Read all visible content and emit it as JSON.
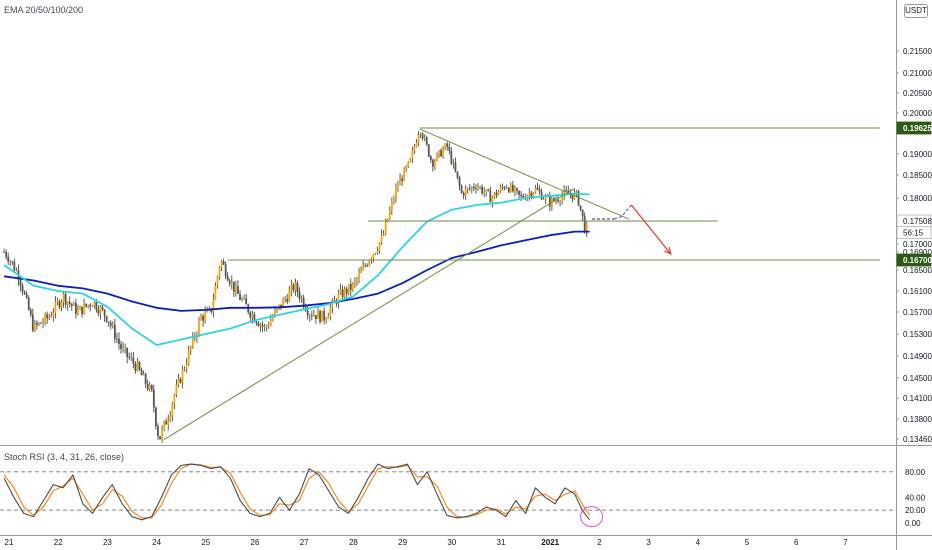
{
  "indicators": {
    "ema_label": "EMA 20/50/100/200",
    "rsi_label": "Stoch RSI (3, 4, 31, 26, close)"
  },
  "currency": "USDT",
  "colors": {
    "up": "#26a69a",
    "down": "#ef5350",
    "body_up": "#f7a600",
    "body_down": "#555555",
    "ema_fast": "#2ed3e0",
    "ema_slow": "#0b1fb5",
    "trendline": "#6b8f3a",
    "arrow": "#e53935",
    "rsi_k": "#4a4a4a",
    "rsi_d": "#f08c20",
    "highlight_circle": "#d86ad8",
    "price_tag_dark": "#2e5b13"
  },
  "chart_data": [
    {
      "type": "candlestick",
      "title": "",
      "x_ticks": [
        "21",
        "22",
        "23",
        "24",
        "25",
        "26",
        "27",
        "28",
        "29",
        "30",
        "31",
        "2021",
        "2",
        "3",
        "4",
        "5",
        "6",
        "7"
      ],
      "y_ticks": [
        "0.21500",
        "0.21000",
        "0.20500",
        "0.20000",
        "0.19000",
        "0.18500",
        "0.18000",
        "0.17000",
        "0.16900",
        "0.16500",
        "0.16100",
        "0.15700",
        "0.15300",
        "0.14900",
        "0.14500",
        "0.14100",
        "0.13800",
        "0.13460"
      ],
      "ylim": [
        0.1335,
        0.22
      ],
      "price_tags": [
        {
          "label": "0.19625",
          "value": 0.19625,
          "style": "dark"
        },
        {
          "label": "0.17508",
          "value": 0.17508,
          "style": "light"
        },
        {
          "label": "56:15",
          "value": 0.1728,
          "style": "light"
        },
        {
          "label": "0.16700",
          "value": 0.167,
          "style": "dark"
        }
      ],
      "price_path": [
        [
          20.9,
          0.169
        ],
        [
          21.2,
          0.164
        ],
        [
          21.5,
          0.154
        ],
        [
          21.8,
          0.156
        ],
        [
          22.1,
          0.16
        ],
        [
          22.4,
          0.157
        ],
        [
          22.7,
          0.159
        ],
        [
          23.0,
          0.156
        ],
        [
          23.3,
          0.15
        ],
        [
          23.6,
          0.147
        ],
        [
          23.9,
          0.142
        ],
        [
          24.05,
          0.1345
        ],
        [
          24.3,
          0.14
        ],
        [
          24.6,
          0.148
        ],
        [
          24.9,
          0.156
        ],
        [
          25.1,
          0.157
        ],
        [
          25.3,
          0.167
        ],
        [
          25.6,
          0.161
        ],
        [
          25.9,
          0.157
        ],
        [
          26.2,
          0.154
        ],
        [
          26.5,
          0.158
        ],
        [
          26.8,
          0.162
        ],
        [
          27.1,
          0.157
        ],
        [
          27.4,
          0.156
        ],
        [
          27.7,
          0.16
        ],
        [
          28.0,
          0.162
        ],
        [
          28.3,
          0.167
        ],
        [
          28.6,
          0.172
        ],
        [
          28.9,
          0.183
        ],
        [
          29.15,
          0.188
        ],
        [
          29.35,
          0.1965
        ],
        [
          29.6,
          0.188
        ],
        [
          29.9,
          0.192
        ],
        [
          30.2,
          0.181
        ],
        [
          30.5,
          0.183
        ],
        [
          30.8,
          0.18
        ],
        [
          31.1,
          0.183
        ],
        [
          31.4,
          0.18
        ],
        [
          31.7,
          0.182
        ],
        [
          32.0,
          0.179
        ],
        [
          32.3,
          0.181
        ],
        [
          32.55,
          0.1805
        ],
        [
          32.72,
          0.173
        ],
        [
          32.8,
          0.175
        ]
      ],
      "ema_fast": [
        [
          20.9,
          0.166
        ],
        [
          21.5,
          0.162
        ],
        [
          22.0,
          0.161
        ],
        [
          22.5,
          0.1605
        ],
        [
          23.0,
          0.158
        ],
        [
          23.5,
          0.154
        ],
        [
          24.0,
          0.151
        ],
        [
          24.5,
          0.152
        ],
        [
          25.0,
          0.153
        ],
        [
          25.5,
          0.154
        ],
        [
          26.0,
          0.1555
        ],
        [
          26.5,
          0.1565
        ],
        [
          27.0,
          0.1575
        ],
        [
          27.5,
          0.1585
        ],
        [
          28.0,
          0.16
        ],
        [
          28.5,
          0.164
        ],
        [
          29.0,
          0.17
        ],
        [
          29.5,
          0.175
        ],
        [
          30.0,
          0.1775
        ],
        [
          30.5,
          0.1785
        ],
        [
          31.0,
          0.179
        ],
        [
          31.5,
          0.18
        ],
        [
          32.0,
          0.1805
        ],
        [
          32.5,
          0.181
        ],
        [
          32.8,
          0.1808
        ]
      ],
      "ema_slow": [
        [
          20.9,
          0.1638
        ],
        [
          21.5,
          0.163
        ],
        [
          22.0,
          0.162
        ],
        [
          22.5,
          0.1615
        ],
        [
          23.0,
          0.1605
        ],
        [
          23.5,
          0.159
        ],
        [
          24.0,
          0.1578
        ],
        [
          24.5,
          0.1572
        ],
        [
          25.0,
          0.1574
        ],
        [
          25.5,
          0.1578
        ],
        [
          26.0,
          0.1578
        ],
        [
          26.5,
          0.1579
        ],
        [
          27.0,
          0.1582
        ],
        [
          27.5,
          0.1587
        ],
        [
          28.0,
          0.1595
        ],
        [
          28.5,
          0.1605
        ],
        [
          29.0,
          0.1625
        ],
        [
          29.5,
          0.165
        ],
        [
          30.0,
          0.1675
        ],
        [
          30.5,
          0.169
        ],
        [
          31.0,
          0.1703
        ],
        [
          31.5,
          0.1713
        ],
        [
          32.0,
          0.1723
        ],
        [
          32.5,
          0.173
        ],
        [
          32.8,
          0.173
        ]
      ],
      "trendlines": [
        {
          "from": [
            24.15,
            0.1345
          ],
          "to": [
            32.5,
            0.1822
          ]
        },
        {
          "from": [
            29.35,
            0.196
          ],
          "to": [
            33.6,
            0.1755
          ]
        },
        {
          "from": [
            29.35,
            0.19625
          ],
          "to": [
            38.7,
            0.19625
          ]
        },
        {
          "from": [
            25.45,
            0.167
          ],
          "to": [
            38.7,
            0.167
          ]
        },
        {
          "from": [
            28.3,
            0.17508
          ],
          "to": [
            35.4,
            0.17508
          ]
        }
      ],
      "projection": {
        "black_dashed": [
          [
            32.85,
            0.1755
          ],
          [
            33.1,
            0.1755
          ],
          [
            33.3,
            0.1755
          ]
        ],
        "blue_dashed": [
          [
            33.3,
            0.1755
          ],
          [
            33.45,
            0.176
          ],
          [
            33.65,
            0.1785
          ]
        ],
        "red_arrow": [
          [
            33.65,
            0.1785
          ],
          [
            34.45,
            0.1685
          ]
        ]
      }
    },
    {
      "type": "line",
      "title": "",
      "y_ticks": [
        "80.00",
        "40.00",
        "20.00",
        "0.00"
      ],
      "ylim": [
        -5,
        105
      ],
      "levels": [
        80,
        20
      ],
      "series": [
        {
          "values": [
            [
              20.9,
              70
            ],
            [
              21.1,
              40
            ],
            [
              21.3,
              15
            ],
            [
              21.5,
              10
            ],
            [
              21.7,
              35
            ],
            [
              21.9,
              60
            ],
            [
              22.1,
              55
            ],
            [
              22.3,
              75
            ],
            [
              22.5,
              30
            ],
            [
              22.7,
              15
            ],
            [
              22.9,
              40
            ],
            [
              23.1,
              60
            ],
            [
              23.3,
              30
            ],
            [
              23.5,
              10
            ],
            [
              23.7,
              5
            ],
            [
              23.9,
              10
            ],
            [
              24.1,
              40
            ],
            [
              24.3,
              75
            ],
            [
              24.5,
              90
            ],
            [
              24.7,
              92
            ],
            [
              24.9,
              90
            ],
            [
              25.1,
              85
            ],
            [
              25.3,
              88
            ],
            [
              25.5,
              70
            ],
            [
              25.7,
              35
            ],
            [
              25.9,
              15
            ],
            [
              26.1,
              10
            ],
            [
              26.3,
              15
            ],
            [
              26.5,
              40
            ],
            [
              26.7,
              20
            ],
            [
              26.9,
              45
            ],
            [
              27.1,
              85
            ],
            [
              27.3,
              75
            ],
            [
              27.5,
              50
            ],
            [
              27.7,
              25
            ],
            [
              27.9,
              15
            ],
            [
              28.1,
              40
            ],
            [
              28.3,
              70
            ],
            [
              28.5,
              92
            ],
            [
              28.7,
              85
            ],
            [
              28.9,
              88
            ],
            [
              29.1,
              92
            ],
            [
              29.3,
              60
            ],
            [
              29.5,
              80
            ],
            [
              29.7,
              45
            ],
            [
              29.9,
              12
            ],
            [
              30.1,
              8
            ],
            [
              30.3,
              10
            ],
            [
              30.5,
              15
            ],
            [
              30.7,
              25
            ],
            [
              30.9,
              20
            ],
            [
              31.1,
              10
            ],
            [
              31.3,
              35
            ],
            [
              31.5,
              15
            ],
            [
              31.7,
              55
            ],
            [
              31.9,
              40
            ],
            [
              32.1,
              30
            ],
            [
              32.3,
              55
            ],
            [
              32.5,
              45
            ],
            [
              32.65,
              20
            ],
            [
              32.8,
              5
            ]
          ]
        },
        {
          "values": [
            [
              20.9,
              75
            ],
            [
              21.1,
              55
            ],
            [
              21.3,
              25
            ],
            [
              21.5,
              12
            ],
            [
              21.7,
              25
            ],
            [
              21.9,
              50
            ],
            [
              22.1,
              58
            ],
            [
              22.3,
              70
            ],
            [
              22.5,
              45
            ],
            [
              22.7,
              20
            ],
            [
              22.9,
              30
            ],
            [
              23.1,
              52
            ],
            [
              23.3,
              42
            ],
            [
              23.5,
              18
            ],
            [
              23.7,
              8
            ],
            [
              23.9,
              8
            ],
            [
              24.1,
              28
            ],
            [
              24.3,
              62
            ],
            [
              24.5,
              85
            ],
            [
              24.7,
              92
            ],
            [
              24.9,
              91
            ],
            [
              25.1,
              87
            ],
            [
              25.3,
              87
            ],
            [
              25.5,
              78
            ],
            [
              25.7,
              48
            ],
            [
              25.9,
              22
            ],
            [
              26.1,
              12
            ],
            [
              26.3,
              13
            ],
            [
              26.5,
              30
            ],
            [
              26.7,
              28
            ],
            [
              26.9,
              35
            ],
            [
              27.1,
              70
            ],
            [
              27.3,
              80
            ],
            [
              27.5,
              62
            ],
            [
              27.7,
              35
            ],
            [
              27.9,
              18
            ],
            [
              28.1,
              30
            ],
            [
              28.3,
              58
            ],
            [
              28.5,
              85
            ],
            [
              28.7,
              88
            ],
            [
              28.9,
              87
            ],
            [
              29.1,
              90
            ],
            [
              29.3,
              72
            ],
            [
              29.5,
              72
            ],
            [
              29.7,
              58
            ],
            [
              29.9,
              25
            ],
            [
              30.1,
              10
            ],
            [
              30.3,
              9
            ],
            [
              30.5,
              13
            ],
            [
              30.7,
              20
            ],
            [
              30.9,
              22
            ],
            [
              31.1,
              14
            ],
            [
              31.3,
              25
            ],
            [
              31.5,
              22
            ],
            [
              31.7,
              42
            ],
            [
              31.9,
              45
            ],
            [
              32.1,
              35
            ],
            [
              32.3,
              45
            ],
            [
              32.5,
              50
            ],
            [
              32.65,
              30
            ],
            [
              32.8,
              12
            ]
          ]
        }
      ]
    }
  ]
}
